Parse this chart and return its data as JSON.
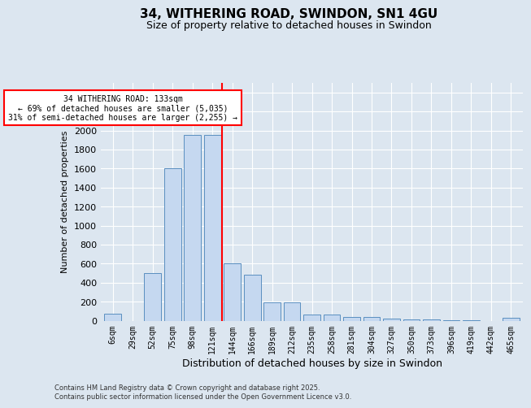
{
  "title1": "34, WITHERING ROAD, SWINDON, SN1 4GU",
  "title2": "Size of property relative to detached houses in Swindon",
  "xlabel": "Distribution of detached houses by size in Swindon",
  "ylabel": "Number of detached properties",
  "categories": [
    "6sqm",
    "29sqm",
    "52sqm",
    "75sqm",
    "98sqm",
    "121sqm",
    "144sqm",
    "166sqm",
    "189sqm",
    "212sqm",
    "235sqm",
    "258sqm",
    "281sqm",
    "304sqm",
    "327sqm",
    "350sqm",
    "373sqm",
    "396sqm",
    "419sqm",
    "442sqm",
    "465sqm"
  ],
  "values": [
    75,
    0,
    500,
    1600,
    1950,
    1950,
    600,
    480,
    195,
    190,
    65,
    60,
    35,
    35,
    20,
    15,
    10,
    5,
    5,
    0,
    30
  ],
  "bar_color": "#c5d8f0",
  "bar_edge_color": "#5a8fc0",
  "vline_x": 5.5,
  "vline_color": "red",
  "annotation_text": "34 WITHERING ROAD: 133sqm\n← 69% of detached houses are smaller (5,035)\n31% of semi-detached houses are larger (2,255) →",
  "annotation_box_color": "red",
  "ylim": [
    0,
    2500
  ],
  "yticks": [
    0,
    200,
    400,
    600,
    800,
    1000,
    1200,
    1400,
    1600,
    1800,
    2000,
    2200,
    2400
  ],
  "footer": "Contains HM Land Registry data © Crown copyright and database right 2025.\nContains public sector information licensed under the Open Government Licence v3.0.",
  "bg_color": "#dce6f0",
  "plot_bg_color": "#dce6f0"
}
